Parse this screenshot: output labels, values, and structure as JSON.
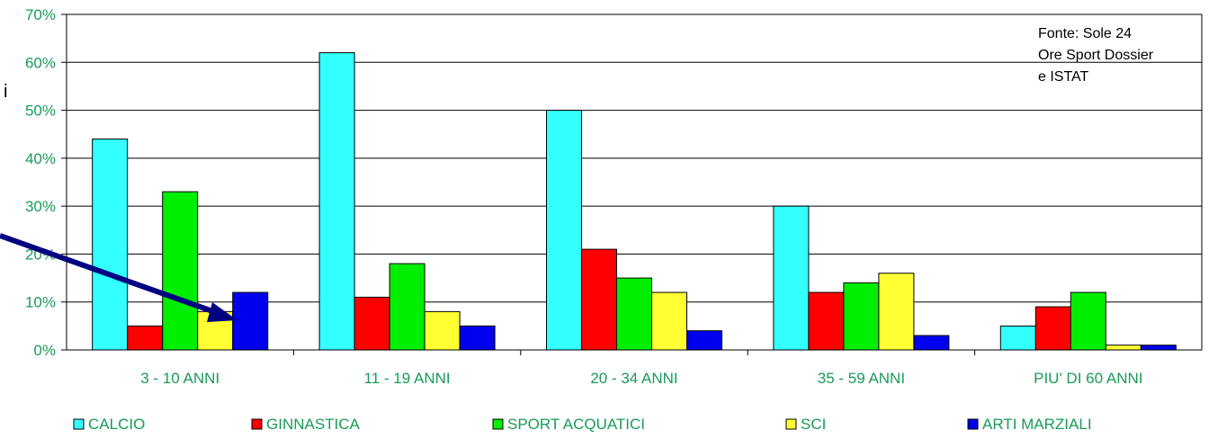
{
  "chart_data": {
    "type": "bar",
    "categories": [
      "3 - 10 ANNI",
      "11 - 19 ANNI",
      "20 - 34 ANNI",
      "35 - 59 ANNI",
      "PIU' DI 60 ANNI"
    ],
    "series": [
      {
        "name": "CALCIO",
        "color": "#33ffff",
        "values": [
          44,
          62,
          50,
          30,
          5
        ]
      },
      {
        "name": "GINNASTICA",
        "color": "#ff0000",
        "values": [
          5,
          11,
          21,
          12,
          9
        ]
      },
      {
        "name": "SPORT ACQUATICI",
        "color": "#00ee00",
        "values": [
          33,
          18,
          15,
          14,
          12
        ]
      },
      {
        "name": "SCI",
        "color": "#ffff33",
        "values": [
          8,
          8,
          12,
          16,
          1
        ]
      },
      {
        "name": "ARTI MARZIALI",
        "color": "#0000ee",
        "values": [
          12,
          5,
          4,
          3,
          1
        ]
      }
    ],
    "yticks": [
      "0%",
      "10%",
      "20%",
      "30%",
      "40%",
      "50%",
      "60%",
      "70%"
    ],
    "ylim": [
      0,
      70
    ],
    "grid": true,
    "legend": "bottom",
    "annotation": "Fonte: Sole 24 Ore Sport Dossier e ISTAT",
    "annotation_lines": [
      "Fonte: Sole 24",
      "Ore Sport Dossier",
      "e ISTAT"
    ],
    "cut_off_text": "i",
    "arrow_color": "#000080"
  }
}
